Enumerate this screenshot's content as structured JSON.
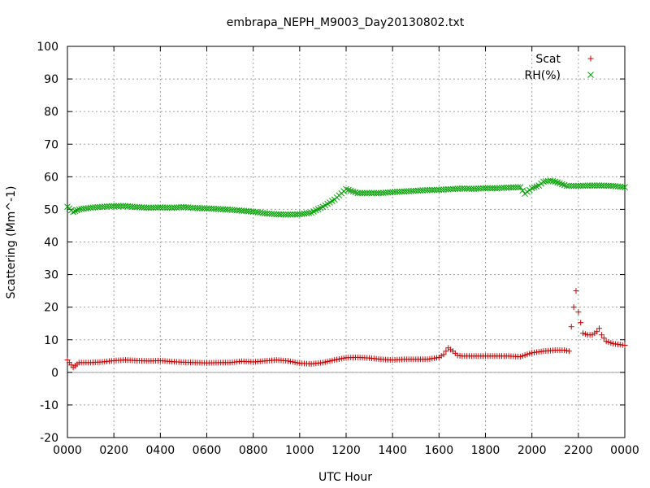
{
  "chart_data": {
    "type": "scatter",
    "title": "embrapa_NEPH_M9003_Day20130802.txt",
    "xlabel": "UTC Hour",
    "ylabel": "Scattering (Mm^-1)",
    "xlim": [
      0,
      24
    ],
    "ylim": [
      -20,
      100
    ],
    "x_ticks": [
      0,
      2,
      4,
      6,
      8,
      10,
      12,
      14,
      16,
      18,
      20,
      22,
      24
    ],
    "x_tick_labels": [
      "0000",
      "0200",
      "0400",
      "0600",
      "0800",
      "1000",
      "1200",
      "1400",
      "1600",
      "1800",
      "2000",
      "2200",
      "0000"
    ],
    "y_ticks": [
      -20,
      -10,
      0,
      10,
      20,
      30,
      40,
      50,
      60,
      70,
      80,
      90,
      100
    ],
    "y_tick_labels": [
      "-20",
      "-10",
      "0",
      "10",
      "20",
      "30",
      "40",
      "50",
      "60",
      "70",
      "80",
      "90",
      "100"
    ],
    "grid": true,
    "zero_line": true,
    "legend_position": "top-right",
    "series": [
      {
        "name": "Scat",
        "marker": "plus",
        "color": "#cc0000",
        "x": [
          0.0,
          0.25,
          0.5,
          1.0,
          1.5,
          2.0,
          2.5,
          3.0,
          3.5,
          4.0,
          4.5,
          5.0,
          5.5,
          6.0,
          6.5,
          7.0,
          7.5,
          8.0,
          8.5,
          9.0,
          9.5,
          10.0,
          10.5,
          11.0,
          11.5,
          12.0,
          12.5,
          13.0,
          13.5,
          14.0,
          14.5,
          15.0,
          15.5,
          16.0,
          16.2,
          16.4,
          16.6,
          16.8,
          17.0,
          17.5,
          18.0,
          18.5,
          19.0,
          19.5,
          20.0,
          20.5,
          21.0,
          21.4,
          21.6,
          21.7,
          21.8,
          21.9,
          22.0,
          22.2,
          22.4,
          22.6,
          22.8,
          22.9,
          23.0,
          23.2,
          23.5,
          23.8,
          24.0
        ],
        "y": [
          3.8,
          1.5,
          3.0,
          3.0,
          3.2,
          3.6,
          3.8,
          3.6,
          3.5,
          3.6,
          3.3,
          3.1,
          3.0,
          2.9,
          3.0,
          3.0,
          3.4,
          3.2,
          3.5,
          3.8,
          3.5,
          2.8,
          2.6,
          3.0,
          3.8,
          4.5,
          4.6,
          4.4,
          4.0,
          3.8,
          4.0,
          4.0,
          4.0,
          4.6,
          5.5,
          7.5,
          6.5,
          5.2,
          5.0,
          5.0,
          5.0,
          5.0,
          5.0,
          4.8,
          6.0,
          6.5,
          6.8,
          6.8,
          6.5,
          14.0,
          20.0,
          25.0,
          18.5,
          12.0,
          11.5,
          11.5,
          12.5,
          13.5,
          11.5,
          9.5,
          8.8,
          8.5,
          8.3
        ]
      },
      {
        "name": "RH(%)",
        "marker": "cross",
        "color": "#00a000",
        "x": [
          0.0,
          0.25,
          0.5,
          1.0,
          1.5,
          2.0,
          2.5,
          3.0,
          3.5,
          4.0,
          4.5,
          5.0,
          5.5,
          6.0,
          6.5,
          7.0,
          7.5,
          8.0,
          8.5,
          9.0,
          9.5,
          10.0,
          10.5,
          11.0,
          11.5,
          12.0,
          12.5,
          13.0,
          13.5,
          14.0,
          14.5,
          15.0,
          15.5,
          16.0,
          16.5,
          17.0,
          17.5,
          18.0,
          18.5,
          19.0,
          19.5,
          19.7,
          20.0,
          20.3,
          20.5,
          20.8,
          21.0,
          21.5,
          22.0,
          22.5,
          23.0,
          23.5,
          24.0
        ],
        "y": [
          50.8,
          49.2,
          50.0,
          50.5,
          50.8,
          51.0,
          51.0,
          50.7,
          50.5,
          50.6,
          50.5,
          50.7,
          50.4,
          50.3,
          50.1,
          49.9,
          49.6,
          49.3,
          48.8,
          48.5,
          48.4,
          48.5,
          49.0,
          50.8,
          53.0,
          56.2,
          55.0,
          55.0,
          55.0,
          55.3,
          55.5,
          55.7,
          55.9,
          56.0,
          56.2,
          56.4,
          56.3,
          56.5,
          56.5,
          56.7,
          56.8,
          54.8,
          56.5,
          57.3,
          58.5,
          58.8,
          58.5,
          57.2,
          57.2,
          57.3,
          57.3,
          57.2,
          56.8
        ]
      }
    ]
  }
}
